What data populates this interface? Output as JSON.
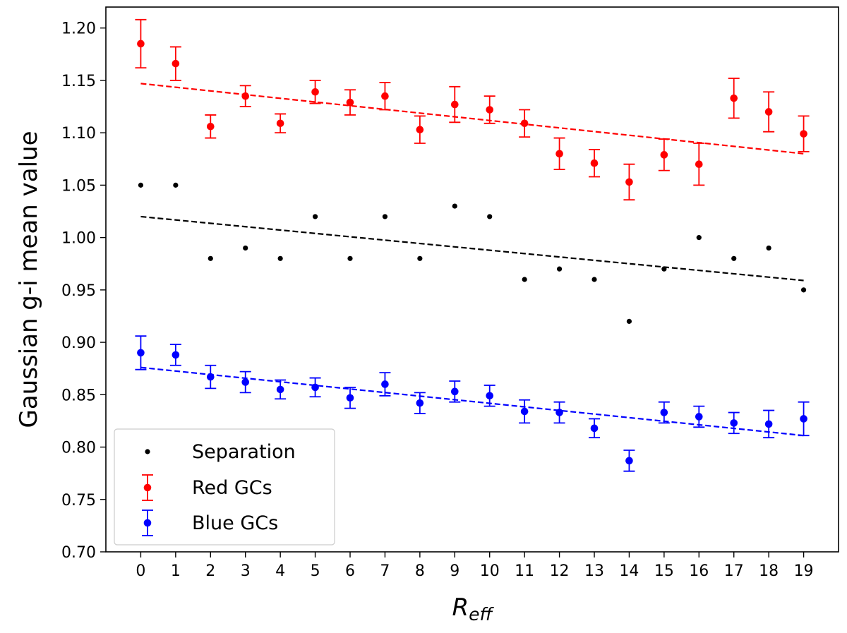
{
  "chart_data": {
    "type": "scatter",
    "title": "",
    "xlabel_main": "R",
    "xlabel_sub": "eff",
    "ylabel": "Gaussian g-i mean value",
    "xlim": [
      -1,
      20
    ],
    "ylim": [
      0.7,
      1.22
    ],
    "x_ticks": [
      0,
      1,
      2,
      3,
      4,
      5,
      6,
      7,
      8,
      9,
      10,
      11,
      12,
      13,
      14,
      15,
      16,
      17,
      18,
      19
    ],
    "x_tick_labels": [
      "0",
      "1",
      "2",
      "3",
      "4",
      "5",
      "6",
      "7",
      "8",
      "9",
      "10",
      "11",
      "12",
      "13",
      "14",
      "15",
      "16",
      "17",
      "18",
      "19"
    ],
    "y_ticks": [
      0.7,
      0.75,
      0.8,
      0.85,
      0.9,
      0.95,
      1.0,
      1.05,
      1.1,
      1.15,
      1.2
    ],
    "y_tick_labels": [
      "0.70",
      "0.75",
      "0.80",
      "0.85",
      "0.90",
      "0.95",
      "1.00",
      "1.05",
      "1.10",
      "1.15",
      "1.20"
    ],
    "grid": false,
    "legend_position": "bottom-left",
    "series": [
      {
        "name": "Separation",
        "color": "#000000",
        "kind": "scatter",
        "x": [
          0,
          1,
          2,
          3,
          4,
          5,
          6,
          7,
          8,
          9,
          10,
          11,
          12,
          13,
          14,
          15,
          16,
          17,
          18,
          19
        ],
        "y": [
          1.05,
          1.05,
          0.98,
          0.99,
          0.98,
          1.02,
          0.98,
          1.02,
          0.98,
          1.03,
          1.02,
          0.96,
          0.97,
          0.96,
          0.92,
          0.97,
          1.0,
          0.98,
          0.99,
          0.95
        ],
        "fit": [
          1.02,
          0.959
        ]
      },
      {
        "name": "Red GCs",
        "color": "#ff0000",
        "kind": "errorbar",
        "x": [
          0,
          1,
          2,
          3,
          4,
          5,
          6,
          7,
          8,
          9,
          10,
          11,
          12,
          13,
          14,
          15,
          16,
          17,
          18,
          19
        ],
        "y": [
          1.185,
          1.166,
          1.106,
          1.135,
          1.109,
          1.139,
          1.129,
          1.135,
          1.103,
          1.127,
          1.122,
          1.109,
          1.08,
          1.071,
          1.053,
          1.079,
          1.07,
          1.133,
          1.12,
          1.099
        ],
        "err": [
          0.023,
          0.016,
          0.011,
          0.01,
          0.009,
          0.011,
          0.012,
          0.013,
          0.013,
          0.017,
          0.013,
          0.013,
          0.015,
          0.013,
          0.017,
          0.015,
          0.02,
          0.019,
          0.019,
          0.017
        ],
        "fit": [
          1.147,
          1.08
        ]
      },
      {
        "name": "Blue GCs",
        "color": "#0000ff",
        "kind": "errorbar",
        "x": [
          0,
          1,
          2,
          3,
          4,
          5,
          6,
          7,
          8,
          9,
          10,
          11,
          12,
          13,
          14,
          15,
          16,
          17,
          18,
          19
        ],
        "y": [
          0.89,
          0.888,
          0.867,
          0.862,
          0.855,
          0.857,
          0.847,
          0.86,
          0.842,
          0.853,
          0.849,
          0.834,
          0.833,
          0.818,
          0.787,
          0.833,
          0.829,
          0.823,
          0.822,
          0.827
        ],
        "err": [
          0.016,
          0.01,
          0.011,
          0.01,
          0.009,
          0.009,
          0.01,
          0.011,
          0.01,
          0.01,
          0.01,
          0.011,
          0.01,
          0.009,
          0.01,
          0.01,
          0.01,
          0.01,
          0.013,
          0.016
        ],
        "fit": [
          0.876,
          0.811
        ]
      }
    ]
  }
}
